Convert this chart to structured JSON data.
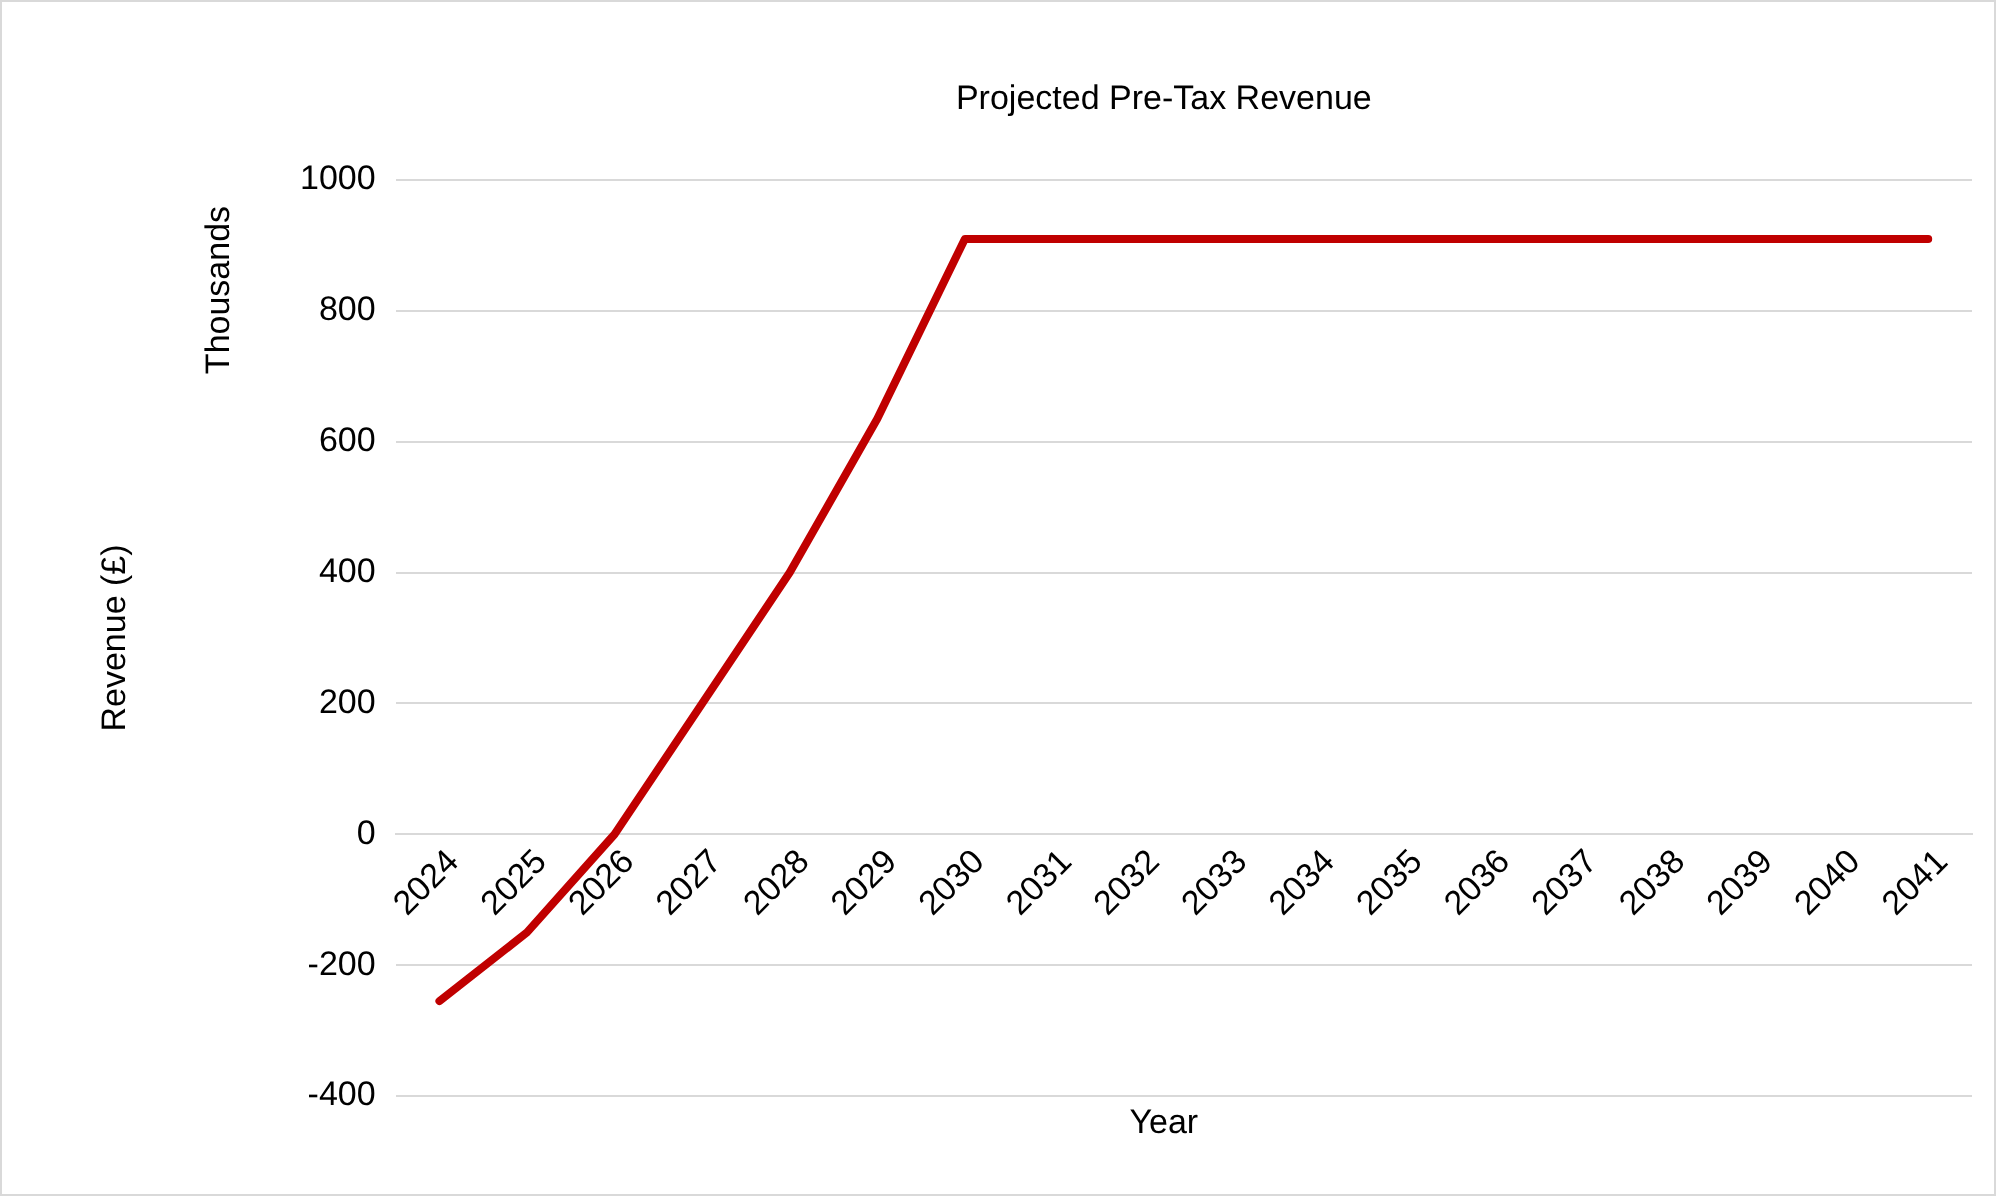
{
  "chart_data": {
    "type": "line",
    "title": "Projected Pre-Tax Revenue",
    "xlabel": "Year",
    "ylabel": "Revenue (£)",
    "annotations": [
      "Thousands"
    ],
    "categories": [
      "2024",
      "2025",
      "2026",
      "2027",
      "2028",
      "2029",
      "2030",
      "2031",
      "2032",
      "2033",
      "2034",
      "2035",
      "2036",
      "2037",
      "2038",
      "2039",
      "2040",
      "2041"
    ],
    "series": [
      {
        "color": "#c00000",
        "values": [
          -255,
          -150,
          0,
          200,
          400,
          635,
          910,
          910,
          910,
          910,
          910,
          910,
          910,
          910,
          910,
          910,
          910,
          910
        ]
      }
    ],
    "ylim": [
      -400,
      1000
    ],
    "yticks": [
      -400,
      -200,
      0,
      200,
      400,
      600,
      800,
      1000
    ],
    "grid": "y",
    "legend": false,
    "marker": "none",
    "line_style": "solid"
  }
}
